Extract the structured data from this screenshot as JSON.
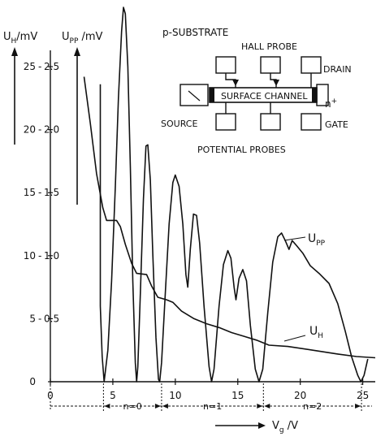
{
  "chart_data": {
    "type": "line",
    "x_unit_label_main": "V",
    "x_unit_label_sub": "g",
    "x_unit_suffix": " /V",
    "xlim": [
      0,
      26
    ],
    "x_ticks": [
      0,
      5,
      10,
      15,
      20,
      25
    ],
    "y_left_label_main": "U",
    "y_left_label_sub": "H",
    "y_left_unit": "/mV",
    "y_left_ticks": [
      0,
      5,
      10,
      15,
      20,
      25
    ],
    "y_right_label_main": "U",
    "y_right_label_sub": "PP",
    "y_right_unit": " /mV",
    "y_right_ticks": [
      "0.5",
      "1.0",
      "1.5",
      "2.0",
      "2.5"
    ],
    "y_right_tick_values": [
      0.5,
      1.0,
      1.5,
      2.0,
      2.5
    ],
    "ylim_left": [
      0,
      29
    ],
    "ylim_right": [
      0,
      2.9
    ],
    "series": [
      {
        "name_main": "U",
        "name_sub": "H",
        "axis": "left",
        "points": [
          [
            2.7,
            24.2
          ],
          [
            3.2,
            20.5
          ],
          [
            3.7,
            16.5
          ],
          [
            4.2,
            13.8
          ],
          [
            4.5,
            12.8
          ],
          [
            5.3,
            12.8
          ],
          [
            5.6,
            12.3
          ],
          [
            6.0,
            10.9
          ],
          [
            6.5,
            9.4
          ],
          [
            6.9,
            8.6
          ],
          [
            7.7,
            8.5
          ],
          [
            8.1,
            7.6
          ],
          [
            8.6,
            6.7
          ],
          [
            9.3,
            6.5
          ],
          [
            9.8,
            6.3
          ],
          [
            10.5,
            5.6
          ],
          [
            11.5,
            5.0
          ],
          [
            12.5,
            4.6
          ],
          [
            13.5,
            4.3
          ],
          [
            14.5,
            3.9
          ],
          [
            15.5,
            3.6
          ],
          [
            16.5,
            3.3
          ],
          [
            17.5,
            2.9
          ],
          [
            19.0,
            2.8
          ],
          [
            21.0,
            2.5
          ],
          [
            23.0,
            2.2
          ],
          [
            24.5,
            2.0
          ],
          [
            26.0,
            1.9
          ]
        ]
      },
      {
        "name_main": "U",
        "name_sub": "PP",
        "axis": "right",
        "points": [
          [
            4.0,
            2.36
          ],
          [
            4.0,
            0.6
          ],
          [
            4.15,
            0.2
          ],
          [
            4.3,
            0.0
          ],
          [
            4.6,
            0.25
          ],
          [
            4.9,
            0.8
          ],
          [
            5.2,
            1.55
          ],
          [
            5.45,
            2.25
          ],
          [
            5.7,
            2.78
          ],
          [
            5.85,
            2.97
          ],
          [
            6.0,
            2.92
          ],
          [
            6.2,
            2.5
          ],
          [
            6.4,
            1.7
          ],
          [
            6.6,
            0.8
          ],
          [
            6.8,
            0.15
          ],
          [
            6.9,
            0.0
          ],
          [
            7.0,
            0.12
          ],
          [
            7.2,
            0.7
          ],
          [
            7.45,
            1.45
          ],
          [
            7.65,
            1.87
          ],
          [
            7.8,
            1.88
          ],
          [
            8.0,
            1.6
          ],
          [
            8.2,
            1.0
          ],
          [
            8.45,
            0.35
          ],
          [
            8.65,
            0.02
          ],
          [
            8.75,
            0.0
          ],
          [
            8.9,
            0.15
          ],
          [
            9.2,
            0.7
          ],
          [
            9.5,
            1.25
          ],
          [
            9.8,
            1.58
          ],
          [
            10.0,
            1.64
          ],
          [
            10.3,
            1.55
          ],
          [
            10.6,
            1.25
          ],
          [
            10.85,
            0.85
          ],
          [
            11.0,
            0.75
          ],
          [
            11.2,
            1.05
          ],
          [
            11.45,
            1.33
          ],
          [
            11.7,
            1.32
          ],
          [
            11.95,
            1.1
          ],
          [
            12.3,
            0.6
          ],
          [
            12.7,
            0.12
          ],
          [
            12.9,
            0.0
          ],
          [
            13.1,
            0.1
          ],
          [
            13.5,
            0.6
          ],
          [
            13.85,
            0.93
          ],
          [
            14.2,
            1.04
          ],
          [
            14.45,
            0.98
          ],
          [
            14.7,
            0.75
          ],
          [
            14.85,
            0.65
          ],
          [
            15.1,
            0.82
          ],
          [
            15.4,
            0.89
          ],
          [
            15.7,
            0.8
          ],
          [
            16.0,
            0.45
          ],
          [
            16.4,
            0.1
          ],
          [
            16.7,
            0.0
          ],
          [
            17.0,
            0.1
          ],
          [
            17.4,
            0.55
          ],
          [
            17.8,
            0.95
          ],
          [
            18.2,
            1.15
          ],
          [
            18.5,
            1.18
          ],
          [
            18.8,
            1.12
          ],
          [
            19.1,
            1.05
          ],
          [
            19.35,
            1.12
          ],
          [
            19.7,
            1.08
          ],
          [
            20.2,
            1.02
          ],
          [
            20.8,
            0.92
          ],
          [
            21.5,
            0.86
          ],
          [
            22.3,
            0.78
          ],
          [
            23.0,
            0.62
          ],
          [
            23.6,
            0.4
          ],
          [
            24.1,
            0.2
          ],
          [
            24.6,
            0.05
          ],
          [
            24.85,
            0.0
          ],
          [
            25.1,
            0.05
          ],
          [
            25.4,
            0.18
          ]
        ]
      }
    ],
    "range_labels": [
      "n=0",
      "n=1",
      "n=2"
    ],
    "range_bounds": [
      4.25,
      8.9,
      17.05,
      24.9
    ],
    "inset": {
      "substrate_label": "p-SUBSTRATE",
      "hall_probe_label": "HALL PROBE",
      "drain_label": "DRAIN",
      "channel_label": "SURFACE CHANNEL",
      "n_plus_label": "n",
      "n_plus_sup": "+",
      "source_label": "SOURCE",
      "gate_label": "GATE",
      "potential_probes_label": "POTENTIAL PROBES"
    }
  }
}
